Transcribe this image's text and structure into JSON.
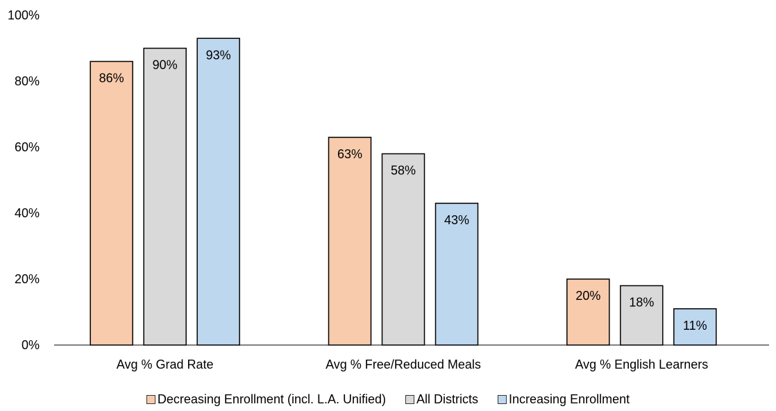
{
  "chart_data": {
    "type": "bar",
    "categories": [
      "Avg % Grad Rate",
      "Avg % Free/Reduced Meals",
      "Avg % English Learners"
    ],
    "series": [
      {
        "name": "Decreasing Enrollment (incl. L.A. Unified)",
        "color": "#f8cbad",
        "values": [
          86,
          63,
          20
        ],
        "labels": [
          "86%",
          "63%",
          "20%"
        ]
      },
      {
        "name": "All Districts",
        "color": "#d9d9d9",
        "values": [
          90,
          58,
          18
        ],
        "labels": [
          "90%",
          "58%",
          "18%"
        ]
      },
      {
        "name": "Increasing Enrollment",
        "color": "#bdd7ee",
        "values": [
          93,
          43,
          11
        ],
        "labels": [
          "93%",
          "43%",
          "11%"
        ]
      }
    ],
    "yticks": [
      "0%",
      "20%",
      "40%",
      "60%",
      "80%",
      "100%"
    ],
    "ylim": [
      0,
      100
    ],
    "grid": false,
    "legend_position": "bottom"
  }
}
